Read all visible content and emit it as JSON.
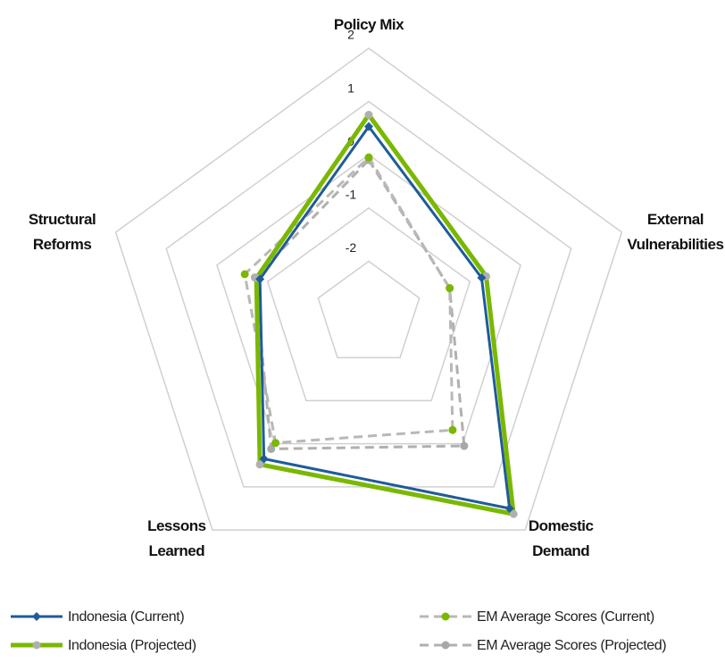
{
  "chart_data": {
    "type": "radar",
    "categories": [
      "Policy Mix",
      "External Vulnerabilities",
      "Domestic Demand",
      "Lessons Learned",
      "Structural Reforms"
    ],
    "rlim": [
      -3,
      2
    ],
    "rticks": [
      -2,
      -1,
      0,
      1,
      2
    ],
    "grid": true,
    "legend": "bottom",
    "series": [
      {
        "name": "Indonesia (Current)",
        "color": "#1f5b99",
        "marker_color": "#1f5b99",
        "marker": "diamond",
        "dashed": false,
        "width": 3,
        "values": [
          0.53,
          -0.77,
          1.5,
          0.35,
          -0.85
        ]
      },
      {
        "name": "Indonesia (Projected)",
        "color": "#7ab800",
        "marker_color": "#b0b0b0",
        "marker": "circle",
        "dashed": false,
        "width": 5,
        "values": [
          0.75,
          -0.68,
          1.63,
          0.48,
          -0.78
        ]
      },
      {
        "name": "EM Average Scores (Current)",
        "color": "#b8b8b8",
        "marker_color": "#7ab800",
        "marker": "circle",
        "dashed": true,
        "width": 3,
        "values": [
          -0.05,
          -1.4,
          -0.32,
          -0.02,
          -0.55
        ]
      },
      {
        "name": "EM Average Scores (Projected)",
        "color": "#b0b0b0",
        "marker_color": "#a8a8a8",
        "marker": "circle",
        "dashed": true,
        "width": 3,
        "values": [
          -0.1,
          -1.4,
          0.05,
          0.12,
          -0.75
        ]
      }
    ]
  }
}
